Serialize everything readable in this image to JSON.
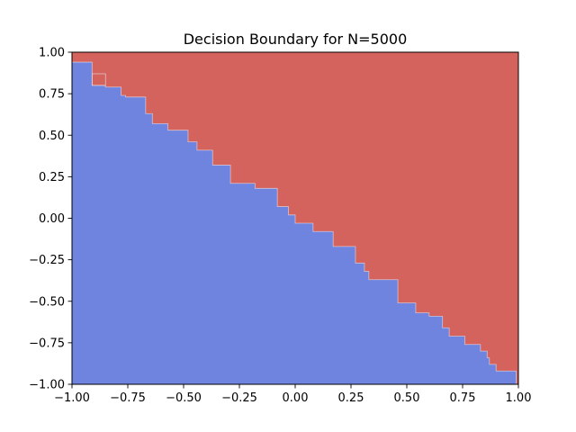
{
  "chart_data": {
    "type": "heatmap",
    "title": "Decision Boundary for N=5000",
    "xlabel": "",
    "ylabel": "",
    "xlim": [
      -1.0,
      1.0
    ],
    "ylim": [
      -1.0,
      1.0
    ],
    "x_ticks": [
      -1.0,
      -0.75,
      -0.5,
      -0.25,
      0.0,
      0.25,
      0.5,
      0.75,
      1.0
    ],
    "x_tick_labels": [
      "−1.00",
      "−0.75",
      "−0.50",
      "−0.25",
      "0.00",
      "0.25",
      "0.50",
      "0.75",
      "1.00"
    ],
    "y_ticks": [
      -1.0,
      -0.75,
      -0.5,
      -0.25,
      0.0,
      0.25,
      0.5,
      0.75,
      1.0
    ],
    "y_tick_labels": [
      "−1.00",
      "−0.75",
      "−0.50",
      "−0.25",
      "0.00",
      "0.25",
      "0.50",
      "0.75",
      "1.00"
    ],
    "grid": false,
    "legend": "none",
    "classes": [
      {
        "region": "below-left",
        "color": "#6f84df"
      },
      {
        "region": "above-right",
        "color": "#d4625d"
      }
    ],
    "boundary": [
      {
        "x": -1.0,
        "y": 0.94
      },
      {
        "x": -0.91,
        "y": 0.94
      },
      {
        "x": -0.91,
        "y": 0.8
      },
      {
        "x": -0.85,
        "y": 0.8
      },
      {
        "x": -0.85,
        "y": 0.79
      },
      {
        "x": -0.78,
        "y": 0.79
      },
      {
        "x": -0.78,
        "y": 0.74
      },
      {
        "x": -0.76,
        "y": 0.74
      },
      {
        "x": -0.76,
        "y": 0.73
      },
      {
        "x": -0.67,
        "y": 0.73
      },
      {
        "x": -0.67,
        "y": 0.63
      },
      {
        "x": -0.64,
        "y": 0.63
      },
      {
        "x": -0.64,
        "y": 0.57
      },
      {
        "x": -0.57,
        "y": 0.57
      },
      {
        "x": -0.57,
        "y": 0.53
      },
      {
        "x": -0.48,
        "y": 0.53
      },
      {
        "x": -0.48,
        "y": 0.46
      },
      {
        "x": -0.44,
        "y": 0.46
      },
      {
        "x": -0.44,
        "y": 0.41
      },
      {
        "x": -0.37,
        "y": 0.41
      },
      {
        "x": -0.37,
        "y": 0.32
      },
      {
        "x": -0.29,
        "y": 0.32
      },
      {
        "x": -0.29,
        "y": 0.21
      },
      {
        "x": -0.18,
        "y": 0.21
      },
      {
        "x": -0.18,
        "y": 0.18
      },
      {
        "x": -0.08,
        "y": 0.18
      },
      {
        "x": -0.08,
        "y": 0.07
      },
      {
        "x": -0.03,
        "y": 0.07
      },
      {
        "x": -0.03,
        "y": 0.02
      },
      {
        "x": 0.0,
        "y": 0.02
      },
      {
        "x": 0.0,
        "y": -0.03
      },
      {
        "x": 0.08,
        "y": -0.03
      },
      {
        "x": 0.08,
        "y": -0.08
      },
      {
        "x": 0.17,
        "y": -0.08
      },
      {
        "x": 0.17,
        "y": -0.17
      },
      {
        "x": 0.27,
        "y": -0.17
      },
      {
        "x": 0.27,
        "y": -0.27
      },
      {
        "x": 0.31,
        "y": -0.27
      },
      {
        "x": 0.31,
        "y": -0.32
      },
      {
        "x": 0.33,
        "y": -0.32
      },
      {
        "x": 0.33,
        "y": -0.37
      },
      {
        "x": 0.46,
        "y": -0.37
      },
      {
        "x": 0.46,
        "y": -0.51
      },
      {
        "x": 0.54,
        "y": -0.51
      },
      {
        "x": 0.54,
        "y": -0.57
      },
      {
        "x": 0.6,
        "y": -0.57
      },
      {
        "x": 0.6,
        "y": -0.59
      },
      {
        "x": 0.66,
        "y": -0.59
      },
      {
        "x": 0.66,
        "y": -0.66
      },
      {
        "x": 0.69,
        "y": -0.66
      },
      {
        "x": 0.69,
        "y": -0.71
      },
      {
        "x": 0.76,
        "y": -0.71
      },
      {
        "x": 0.76,
        "y": -0.76
      },
      {
        "x": 0.83,
        "y": -0.76
      },
      {
        "x": 0.83,
        "y": -0.8
      },
      {
        "x": 0.86,
        "y": -0.8
      },
      {
        "x": 0.86,
        "y": -0.84
      },
      {
        "x": 0.87,
        "y": -0.84
      },
      {
        "x": 0.87,
        "y": -0.88
      },
      {
        "x": 0.9,
        "y": -0.88
      },
      {
        "x": 0.9,
        "y": -0.92
      },
      {
        "x": 0.99,
        "y": -0.92
      },
      {
        "x": 0.99,
        "y": -1.0
      }
    ],
    "islands": [
      {
        "class": "above-right",
        "x": [
          -0.91,
          -0.85
        ],
        "y": [
          0.8,
          0.87
        ]
      }
    ]
  }
}
